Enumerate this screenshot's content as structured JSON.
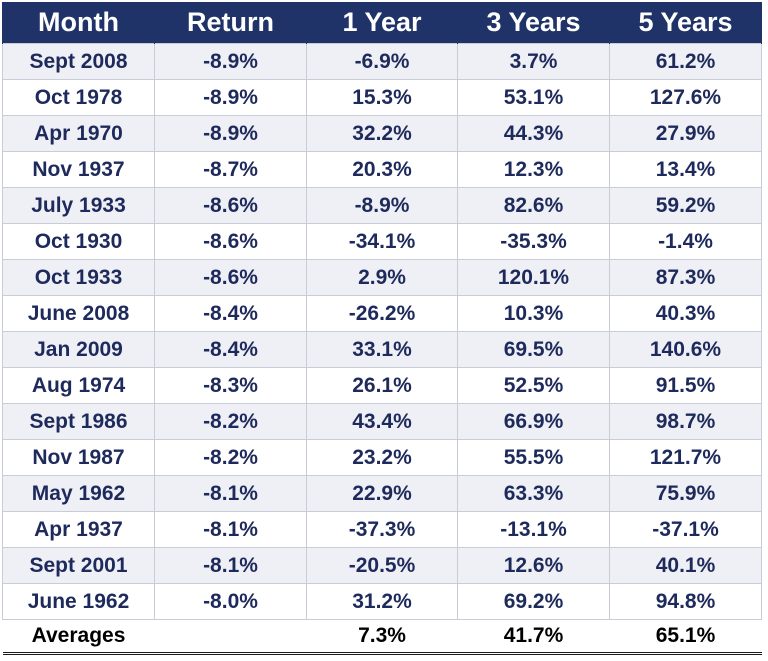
{
  "headers": [
    "Month",
    "Return",
    "1 Year",
    "3 Years",
    "5 Years"
  ],
  "rows": [
    [
      "Sept 2008",
      "-8.9%",
      "-6.9%",
      "3.7%",
      "61.2%"
    ],
    [
      "Oct 1978",
      "-8.9%",
      "15.3%",
      "53.1%",
      "127.6%"
    ],
    [
      "Apr 1970",
      "-8.9%",
      "32.2%",
      "44.3%",
      "27.9%"
    ],
    [
      "Nov 1937",
      "-8.7%",
      "20.3%",
      "12.3%",
      "13.4%"
    ],
    [
      "July 1933",
      "-8.6%",
      "-8.9%",
      "82.6%",
      "59.2%"
    ],
    [
      "Oct 1930",
      "-8.6%",
      "-34.1%",
      "-35.3%",
      "-1.4%"
    ],
    [
      "Oct 1933",
      "-8.6%",
      "2.9%",
      "120.1%",
      "87.3%"
    ],
    [
      "June 2008",
      "-8.4%",
      "-26.2%",
      "10.3%",
      "40.3%"
    ],
    [
      "Jan 2009",
      "-8.4%",
      "33.1%",
      "69.5%",
      "140.6%"
    ],
    [
      "Aug 1974",
      "-8.3%",
      "26.1%",
      "52.5%",
      "91.5%"
    ],
    [
      "Sept 1986",
      "-8.2%",
      "43.4%",
      "66.9%",
      "98.7%"
    ],
    [
      "Nov 1987",
      "-8.2%",
      "23.2%",
      "55.5%",
      "121.7%"
    ],
    [
      "May 1962",
      "-8.1%",
      "22.9%",
      "63.3%",
      "75.9%"
    ],
    [
      "Apr 1937",
      "-8.1%",
      "-37.3%",
      "-13.1%",
      "-37.1%"
    ],
    [
      "Sept 2001",
      "-8.1%",
      "-20.5%",
      "12.6%",
      "40.1%"
    ],
    [
      "June 1962",
      "-8.0%",
      "31.2%",
      "69.2%",
      "94.8%"
    ]
  ],
  "averages": [
    "Averages",
    "",
    "7.3%",
    "41.7%",
    "65.1%"
  ],
  "colors": {
    "header_bg": "#203368",
    "header_text": "#ffffff",
    "cell_text": "#1e2a5c",
    "stripe": "#eef0f5"
  }
}
